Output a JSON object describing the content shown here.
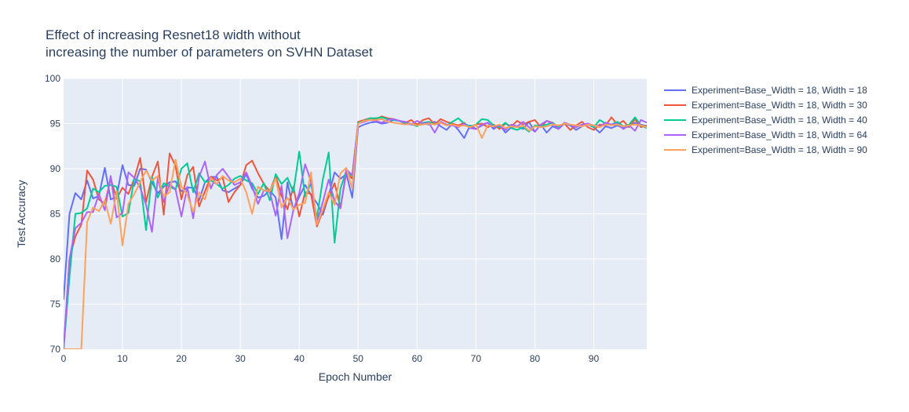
{
  "chart_data": {
    "type": "line",
    "title_lines": [
      "Effect of increasing Resnet18 width without",
      "increasing the number of parameters on SVHN Dataset"
    ],
    "xlabel": "Epoch Number",
    "ylabel": "Test Accuracy",
    "xlim": [
      0,
      99
    ],
    "ylim": [
      70,
      100
    ],
    "xticks": [
      0,
      10,
      20,
      30,
      40,
      50,
      60,
      70,
      80,
      90
    ],
    "yticks": [
      70,
      75,
      80,
      85,
      90,
      95,
      100
    ],
    "grid": true,
    "legend_position": "right",
    "plot_background": "#e5ecf6",
    "series": [
      {
        "name": "Experiment=Base_Width = 18, Width = 18",
        "color": "#636efa",
        "values": [
          75.5,
          85.0,
          87.3,
          86.6,
          88.7,
          86.7,
          87.0,
          90.1,
          86.6,
          86.9,
          90.4,
          88.2,
          88.1,
          90.0,
          89.9,
          88.5,
          87.3,
          88.0,
          88.5,
          88.6,
          87.5,
          87.9,
          87.9,
          86.5,
          88.5,
          89.1,
          89.1,
          87.6,
          87.4,
          87.8,
          88.2,
          89.4,
          87.8,
          86.8,
          87.0,
          87.6,
          86.8,
          82.2,
          88.5,
          85.4,
          86.9,
          88.2,
          87.1,
          86.2,
          84.9,
          87.0,
          89.6,
          88.9,
          89.4,
          86.8,
          94.6,
          94.9,
          95.1,
          95.2,
          95.0,
          95.1,
          95.4,
          95.3,
          95.0,
          94.9,
          94.8,
          95.0,
          94.9,
          95.2,
          94.7,
          94.3,
          95.0,
          94.3,
          93.4,
          94.8,
          94.4,
          94.8,
          95.1,
          94.4,
          94.9,
          94.0,
          94.6,
          94.7,
          94.4,
          95.2,
          94.1,
          94.9,
          94.0,
          94.7,
          94.4,
          95.0,
          94.8,
          94.3,
          94.7,
          94.9,
          94.6,
          94.0,
          94.7,
          94.5,
          94.8,
          94.5,
          94.7,
          95.1,
          94.9,
          94.7
        ]
      },
      {
        "name": "Experiment=Base_Width = 18, Width = 30",
        "color": "#ef553b",
        "values": [
          70.0,
          80.0,
          82.5,
          83.8,
          89.8,
          88.8,
          86.6,
          86.1,
          88.9,
          86.7,
          87.9,
          87.2,
          88.9,
          91.2,
          86.3,
          89.1,
          90.8,
          84.9,
          91.7,
          90.3,
          86.6,
          89.3,
          90.2,
          85.8,
          87.5,
          89.1,
          88.7,
          89.0,
          86.3,
          87.4,
          88.2,
          90.4,
          90.9,
          89.5,
          88.3,
          87.5,
          89.2,
          87.0,
          85.5,
          88.0,
          84.7,
          87.4,
          87.2,
          83.6,
          85.3,
          86.9,
          88.4,
          85.7,
          89.6,
          88.9,
          95.2,
          95.4,
          95.6,
          95.5,
          95.8,
          95.6,
          95.5,
          95.3,
          95.1,
          95.4,
          94.9,
          95.4,
          95.6,
          94.9,
          95.5,
          95.2,
          95.0,
          94.8,
          95.1,
          94.5,
          94.9,
          95.0,
          94.6,
          94.9,
          94.4,
          95.0,
          94.7,
          95.3,
          94.9,
          95.2,
          95.4,
          94.6,
          95.3,
          95.1,
          94.5,
          95.0,
          94.3,
          94.8,
          95.2,
          94.6,
          94.3,
          94.9,
          94.8,
          95.7,
          94.9,
          95.3,
          94.6,
          95.5,
          94.6,
          94.8
        ]
      },
      {
        "name": "Experiment=Base_Width = 18, Width = 40",
        "color": "#00cc96",
        "values": [
          70.0,
          78.0,
          85.0,
          85.1,
          85.6,
          87.8,
          87.4,
          88.1,
          88.2,
          88.0,
          84.7,
          85.1,
          88.9,
          88.6,
          83.2,
          89.1,
          86.8,
          88.4,
          88.0,
          87.7,
          90.0,
          90.6,
          87.4,
          89.5,
          88.5,
          88.7,
          88.3,
          87.8,
          88.2,
          88.9,
          89.2,
          88.7,
          88.4,
          87.2,
          88.4,
          86.5,
          89.4,
          88.3,
          89.0,
          87.4,
          91.9,
          86.9,
          88.4,
          84.5,
          88.8,
          91.8,
          81.8,
          87.8,
          89.8,
          89.2,
          95.1,
          95.3,
          95.6,
          95.6,
          95.7,
          95.5,
          95.4,
          95.3,
          95.1,
          95.0,
          94.7,
          95.1,
          95.2,
          94.9,
          95.1,
          94.8,
          95.2,
          95.6,
          95.0,
          94.7,
          94.9,
          95.5,
          95.4,
          94.8,
          94.6,
          95.1,
          94.5,
          94.3,
          94.6,
          94.1,
          94.8,
          94.7,
          94.9,
          95.1,
          94.6,
          95.0,
          94.9,
          94.7,
          94.8,
          95.0,
          94.6,
          95.4,
          95.0,
          94.9,
          95.2,
          94.7,
          94.9,
          95.7,
          94.8,
          94.5
        ]
      },
      {
        "name": "Experiment=Base_Width = 18, Width = 64",
        "color": "#ab63fa",
        "values": [
          70.0,
          80.0,
          83.4,
          84.0,
          85.2,
          85.2,
          87.2,
          85.4,
          89.2,
          84.6,
          85.1,
          89.6,
          89.0,
          87.9,
          86.0,
          83.0,
          89.0,
          86.3,
          88.3,
          87.7,
          84.7,
          88.0,
          84.5,
          89.1,
          90.8,
          87.8,
          89.3,
          90.0,
          89.1,
          88.2,
          88.5,
          89.6,
          88.1,
          86.1,
          87.6,
          87.4,
          84.8,
          88.1,
          82.3,
          85.4,
          87.3,
          90.5,
          88.6,
          84.1,
          86.3,
          88.8,
          86.4,
          85.6,
          89.9,
          89.3,
          95.0,
          95.2,
          95.4,
          95.3,
          95.1,
          95.4,
          95.5,
          95.3,
          95.2,
          94.9,
          95.3,
          95.0,
          95.1,
          94.0,
          95.2,
          94.9,
          94.8,
          94.6,
          95.0,
          94.5,
          94.4,
          94.9,
          95.1,
          94.6,
          94.8,
          94.3,
          94.9,
          94.7,
          95.2,
          94.6,
          94.1,
          94.9,
          95.3,
          95.0,
          94.4,
          95.1,
          94.9,
          94.6,
          94.9,
          95.0,
          94.8,
          94.7,
          95.1,
          94.9,
          95.0,
          94.4,
          94.8,
          94.2,
          95.4,
          95.1
        ]
      },
      {
        "name": "Experiment=Base_Width = 18, Width = 90",
        "color": "#ffa15a",
        "values": [
          70.0,
          70.0,
          70.0,
          70.0,
          84.1,
          85.7,
          85.3,
          86.5,
          83.9,
          87.5,
          81.5,
          86.1,
          87.2,
          88.5,
          89.8,
          88.7,
          89.2,
          86.9,
          87.4,
          91.0,
          88.0,
          87.1,
          85.2,
          87.4,
          86.6,
          89.0,
          88.3,
          89.2,
          88.7,
          88.5,
          88.9,
          87.4,
          85.0,
          88.0,
          87.6,
          87.5,
          88.9,
          85.7,
          86.8,
          85.5,
          86.0,
          86.2,
          89.6,
          83.8,
          85.5,
          87.4,
          86.0,
          89.5,
          90.1,
          87.8,
          95.0,
          95.3,
          95.4,
          95.4,
          95.5,
          95.2,
          95.1,
          95.0,
          94.9,
          95.0,
          94.8,
          94.9,
          95.0,
          94.9,
          95.1,
          94.8,
          94.9,
          94.7,
          94.8,
          94.6,
          94.9,
          93.4,
          94.8,
          94.7,
          94.9,
          94.5,
          94.7,
          94.6,
          94.8,
          94.2,
          94.7,
          94.6,
          94.7,
          94.9,
          94.8,
          95.0,
          94.9,
          94.8,
          94.7,
          94.9,
          94.8,
          94.6,
          94.9,
          94.8,
          94.9,
          94.7,
          94.8,
          94.9,
          94.8,
          94.6
        ]
      }
    ]
  }
}
